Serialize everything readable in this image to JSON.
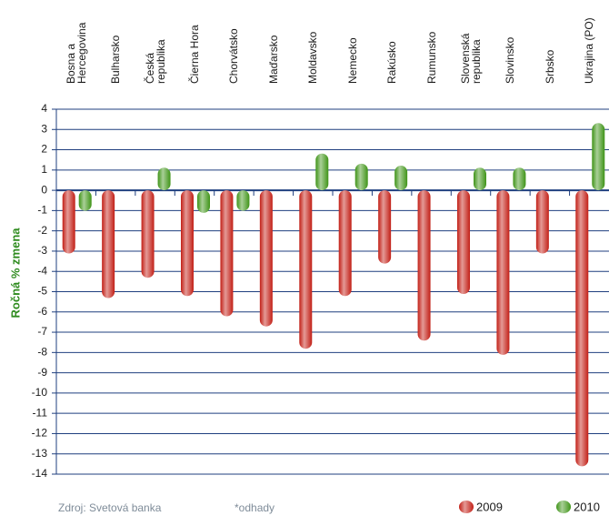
{
  "chart_data": {
    "type": "bar",
    "ylabel": "Ročná % zmena",
    "categories": [
      "Bosna a Hercegovina",
      "Bulharsko",
      "Česká republika",
      "Čierna Hora",
      "Chorvátsko",
      "Maďarsko",
      "Moldavsko",
      "Nemecko",
      "Rakúsko",
      "Rumunsko",
      "Slovenská republika",
      "Slovinsko",
      "Srbsko",
      "Ukrajina (PO)"
    ],
    "series": [
      {
        "name": "2009",
        "color": "#c21f16",
        "values": [
          -2.8,
          -5,
          -4,
          -4.9,
          -5.9,
          -6.4,
          -7.5,
          -4.9,
          -3.3,
          -7.1,
          -4.8,
          -7.8,
          -2.8,
          -13.3
        ]
      },
      {
        "name": "2010",
        "color": "#3f9418",
        "values": [
          -0.7,
          null,
          0.8,
          -0.8,
          -0.7,
          null,
          1.5,
          1.0,
          0.9,
          null,
          0.8,
          0.8,
          null,
          3.0
        ]
      }
    ],
    "ylim": [
      -14,
      4
    ],
    "yticks": [
      -14,
      -13,
      -12,
      -11,
      -10,
      -9,
      -8,
      -7,
      -6,
      -5,
      -4,
      -3,
      -2,
      -1,
      0,
      1,
      2,
      3,
      4
    ],
    "grid": true,
    "legend": "bottom-right",
    "source": "Zdroj: Svetová banka",
    "note": "*odhady"
  }
}
